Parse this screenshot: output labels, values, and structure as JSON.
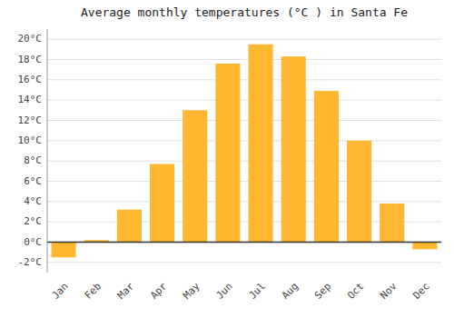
{
  "chart_data": {
    "type": "bar",
    "title": "Average monthly temperatures (°C ) in Santa Fe",
    "categories": [
      "Jan",
      "Feb",
      "Mar",
      "Apr",
      "May",
      "Jun",
      "Jul",
      "Aug",
      "Sep",
      "Oct",
      "Nov",
      "Dec"
    ],
    "values": [
      -1.5,
      0.2,
      3.2,
      7.7,
      13.0,
      17.6,
      19.5,
      18.3,
      14.9,
      10.0,
      3.8,
      -0.7
    ],
    "color": "#FFB732",
    "ylim": [
      -3,
      21
    ],
    "yticks": [
      {
        "value": -2,
        "label": "-2°C"
      },
      {
        "value": 0,
        "label": "0°C"
      },
      {
        "value": 2,
        "label": "2°C"
      },
      {
        "value": 4,
        "label": "4°C"
      },
      {
        "value": 6,
        "label": "6°C"
      },
      {
        "value": 8,
        "label": "8°C"
      },
      {
        "value": 10,
        "label": "10°C"
      },
      {
        "value": 12,
        "label": "12°C"
      },
      {
        "value": 14,
        "label": "14°C"
      },
      {
        "value": 16,
        "label": "16°C"
      },
      {
        "value": 18,
        "label": "18°C"
      },
      {
        "value": 20,
        "label": "20°C"
      }
    ],
    "grid": true
  }
}
